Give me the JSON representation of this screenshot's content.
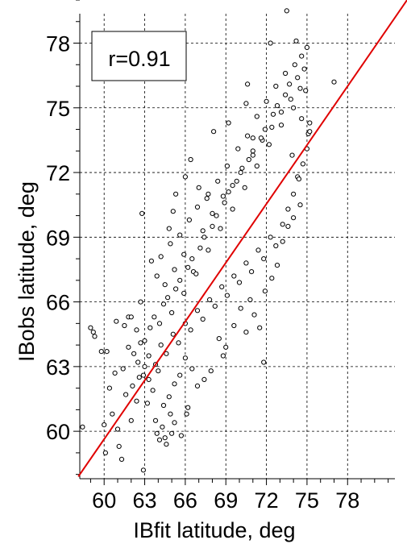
{
  "chart_data": {
    "type": "scatter",
    "title": "",
    "xlabel": "IBfit latitude, deg",
    "ylabel": "IBobs latitude, deg",
    "xlim": [
      58.2,
      81.5
    ],
    "ylim": [
      57.8,
      80
    ],
    "xticks": [
      60,
      63,
      66,
      69,
      72,
      75,
      78
    ],
    "yticks": [
      60,
      63,
      66,
      69,
      72,
      75,
      78
    ],
    "grid": true,
    "grid_style": "dashed",
    "annotation": "r=0.91",
    "annotation_position": "top-left",
    "fit_line": {
      "slope": 1.075,
      "intercept": -4.55,
      "color": "#e00000"
    },
    "marker": {
      "shape": "open-circle",
      "edge_color": "#000000"
    },
    "series": [
      {
        "points": [
          [
            58.4,
            60.2
          ],
          [
            59.0,
            64.8
          ],
          [
            59.2,
            64.6
          ],
          [
            59.3,
            64.4
          ],
          [
            59.8,
            63.7
          ],
          [
            60.0,
            60.3
          ],
          [
            60.1,
            59.0
          ],
          [
            60.2,
            63.7
          ],
          [
            60.4,
            62.0
          ],
          [
            60.6,
            60.8
          ],
          [
            60.8,
            62.7
          ],
          [
            60.9,
            65.1
          ],
          [
            61.0,
            60.1
          ],
          [
            61.1,
            59.3
          ],
          [
            61.3,
            58.7
          ],
          [
            61.4,
            62.9
          ],
          [
            61.5,
            64.9
          ],
          [
            61.6,
            61.7
          ],
          [
            61.8,
            65.3
          ],
          [
            62.0,
            60.5
          ],
          [
            62.1,
            62.1
          ],
          [
            62.4,
            61.4
          ],
          [
            62.6,
            62.5
          ],
          [
            62.7,
            66.0
          ],
          [
            62.8,
            70.1
          ],
          [
            62.9,
            58.2
          ],
          [
            63.2,
            61.3
          ],
          [
            63.5,
            67.9
          ],
          [
            63.8,
            60.5
          ],
          [
            63.9,
            59.9
          ],
          [
            64.1,
            59.6
          ],
          [
            64.3,
            60.2
          ],
          [
            64.5,
            59.7
          ],
          [
            64.6,
            59.4
          ],
          [
            64.9,
            60.8
          ],
          [
            65.0,
            59.9
          ],
          [
            65.2,
            60.4
          ],
          [
            65.7,
            59.8
          ],
          [
            66.2,
            61.1
          ],
          [
            66.1,
            60.8
          ],
          [
            64.8,
            69.4
          ],
          [
            65.1,
            70.2
          ],
          [
            65.3,
            71.0
          ],
          [
            66.0,
            71.8
          ],
          [
            66.4,
            72.6
          ],
          [
            67.0,
            71.3
          ],
          [
            67.6,
            70.8
          ],
          [
            68.1,
            73.9
          ],
          [
            69.2,
            74.3
          ],
          [
            70.5,
            75.2
          ],
          [
            70.6,
            76.1
          ],
          [
            71.0,
            73.6
          ],
          [
            72.3,
            78.0
          ],
          [
            73.5,
            79.5
          ],
          [
            74.2,
            78.1
          ],
          [
            74.6,
            77.4
          ],
          [
            75.0,
            77.8
          ],
          [
            77.0,
            76.2
          ],
          [
            75.2,
            74.3
          ],
          [
            75.1,
            73.8
          ],
          [
            74.5,
            70.5
          ],
          [
            74.3,
            71.8
          ],
          [
            74.0,
            69.9
          ],
          [
            73.6,
            69.5
          ],
          [
            73.2,
            68.8
          ],
          [
            72.8,
            67.7
          ],
          [
            72.4,
            67.1
          ],
          [
            71.9,
            66.5
          ],
          [
            71.8,
            63.2
          ],
          [
            71.5,
            64.8
          ],
          [
            71.1,
            65.4
          ],
          [
            70.8,
            66.1
          ],
          [
            70.5,
            64.6
          ],
          [
            70.1,
            65.7
          ],
          [
            69.6,
            64.9
          ],
          [
            69.0,
            63.9
          ],
          [
            68.8,
            63.5
          ],
          [
            68.5,
            64.3
          ],
          [
            67.9,
            62.8
          ],
          [
            67.4,
            62.4
          ],
          [
            66.9,
            62.1
          ],
          [
            66.5,
            62.9
          ],
          [
            66.0,
            63.4
          ],
          [
            65.6,
            62.6
          ],
          [
            65.2,
            62.2
          ],
          [
            64.8,
            61.6
          ],
          [
            64.4,
            61.2
          ],
          [
            64.0,
            62.8
          ],
          [
            63.6,
            61.9
          ],
          [
            63.3,
            62.4
          ],
          [
            63.0,
            63.0
          ],
          [
            62.7,
            64.1
          ],
          [
            62.4,
            64.7
          ],
          [
            62.2,
            63.6
          ],
          [
            62.0,
            65.3
          ],
          [
            61.8,
            63.9
          ],
          [
            63.9,
            67.2
          ],
          [
            64.2,
            68.1
          ],
          [
            64.5,
            66.8
          ],
          [
            64.9,
            68.7
          ],
          [
            65.2,
            67.5
          ],
          [
            65.6,
            69.1
          ],
          [
            65.9,
            68.2
          ],
          [
            66.3,
            69.8
          ],
          [
            66.6,
            67.4
          ],
          [
            66.9,
            70.4
          ],
          [
            67.3,
            69.3
          ],
          [
            67.7,
            71.0
          ],
          [
            68.0,
            70.1
          ],
          [
            68.4,
            71.6
          ],
          [
            68.8,
            70.9
          ],
          [
            69.1,
            72.3
          ],
          [
            69.5,
            71.4
          ],
          [
            69.9,
            73.1
          ],
          [
            70.2,
            72.2
          ],
          [
            70.6,
            73.7
          ],
          [
            71.0,
            72.8
          ],
          [
            71.3,
            74.6
          ],
          [
            71.7,
            73.5
          ],
          [
            72.0,
            75.3
          ],
          [
            72.4,
            74.1
          ],
          [
            72.7,
            76.0
          ],
          [
            73.1,
            74.8
          ],
          [
            73.4,
            76.6
          ],
          [
            73.8,
            75.4
          ],
          [
            74.1,
            77.0
          ],
          [
            74.5,
            75.9
          ],
          [
            74.8,
            76.8
          ],
          [
            63.0,
            64.2
          ],
          [
            63.4,
            64.8
          ],
          [
            63.7,
            65.3
          ],
          [
            64.1,
            65.0
          ],
          [
            64.4,
            65.9
          ],
          [
            64.7,
            66.2
          ],
          [
            65.0,
            65.5
          ],
          [
            65.3,
            66.6
          ],
          [
            65.6,
            67.0
          ],
          [
            65.9,
            66.4
          ],
          [
            66.2,
            67.6
          ],
          [
            66.5,
            68.0
          ],
          [
            66.8,
            67.3
          ],
          [
            67.1,
            68.5
          ],
          [
            67.4,
            69.0
          ],
          [
            67.7,
            68.4
          ],
          [
            68.0,
            69.5
          ],
          [
            68.3,
            70.0
          ],
          [
            68.6,
            69.4
          ],
          [
            68.9,
            70.6
          ],
          [
            69.2,
            71.1
          ],
          [
            69.5,
            70.3
          ],
          [
            69.8,
            71.6
          ],
          [
            70.1,
            72.0
          ],
          [
            70.4,
            71.3
          ],
          [
            70.7,
            72.6
          ],
          [
            71.0,
            73.0
          ],
          [
            71.3,
            72.3
          ],
          [
            71.6,
            73.6
          ],
          [
            71.9,
            74.0
          ],
          [
            72.2,
            73.3
          ],
          [
            72.5,
            74.7
          ],
          [
            72.8,
            75.1
          ],
          [
            73.1,
            74.2
          ],
          [
            73.4,
            75.6
          ],
          [
            73.7,
            76.1
          ],
          [
            74.0,
            75.0
          ],
          [
            74.3,
            76.4
          ],
          [
            74.6,
            74.5
          ],
          [
            74.9,
            75.8
          ],
          [
            62.5,
            63.2
          ],
          [
            62.9,
            62.6
          ],
          [
            63.3,
            63.5
          ],
          [
            63.8,
            63.1
          ],
          [
            64.2,
            64.0
          ],
          [
            64.6,
            63.6
          ],
          [
            65.1,
            64.5
          ],
          [
            65.5,
            64.1
          ],
          [
            66.0,
            65.0
          ],
          [
            66.4,
            64.7
          ],
          [
            66.9,
            65.6
          ],
          [
            67.3,
            65.2
          ],
          [
            67.8,
            66.1
          ],
          [
            68.2,
            65.8
          ],
          [
            68.7,
            66.7
          ],
          [
            69.1,
            66.3
          ],
          [
            69.6,
            67.2
          ],
          [
            70.0,
            66.9
          ],
          [
            70.5,
            67.8
          ],
          [
            70.9,
            67.4
          ],
          [
            71.4,
            68.4
          ],
          [
            71.8,
            68.0
          ],
          [
            72.3,
            69.0
          ],
          [
            72.7,
            68.6
          ],
          [
            73.2,
            69.6
          ],
          [
            73.6,
            70.3
          ],
          [
            74.0,
            71.0
          ],
          [
            74.4,
            71.7
          ],
          [
            74.7,
            72.4
          ],
          [
            75.0,
            73.1
          ],
          [
            75.2,
            73.9
          ],
          [
            73.9,
            72.8
          ]
        ]
      }
    ]
  }
}
